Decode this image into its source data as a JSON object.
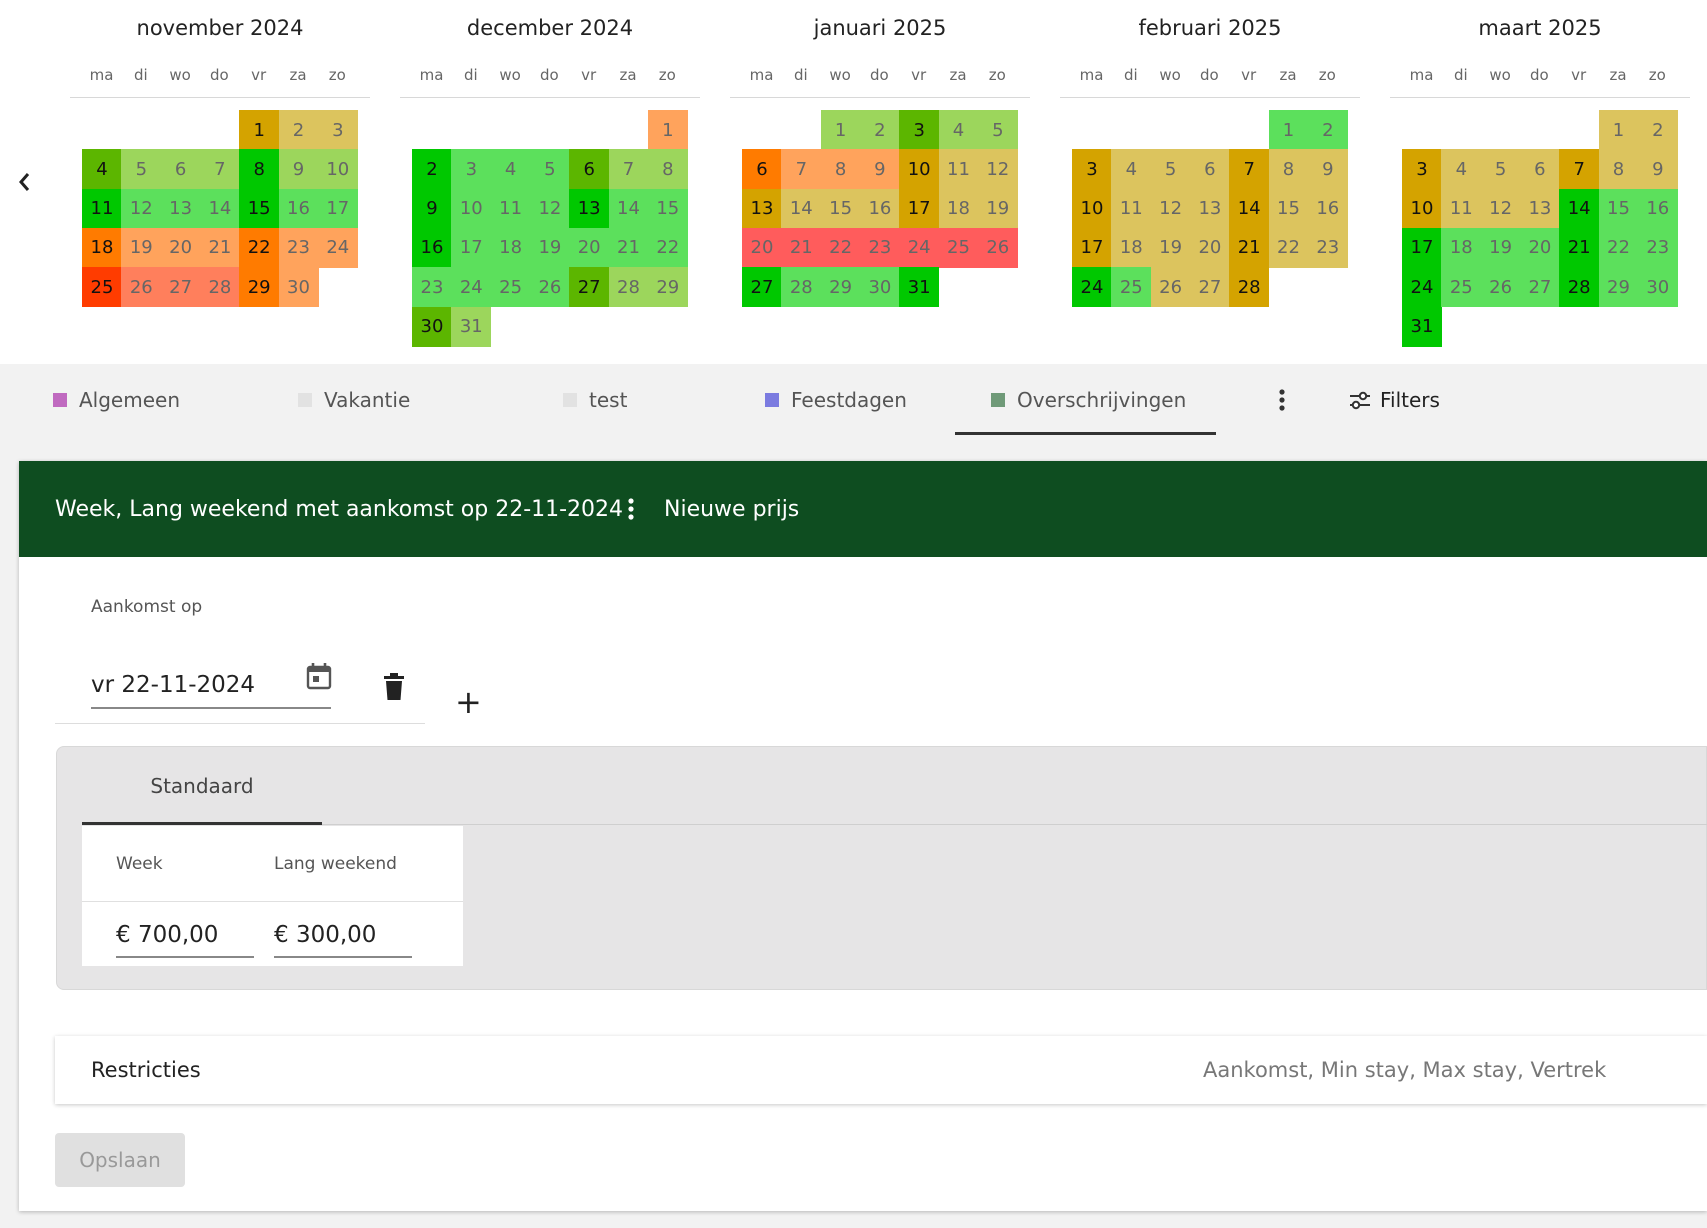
{
  "calendar": {
    "weekdays": [
      "ma",
      "di",
      "wo",
      "do",
      "vr",
      "za",
      "zo"
    ],
    "months": [
      {
        "title": "november 2024",
        "start_offset": 4,
        "days": [
          {
            "d": "1",
            "c": "#d4a300",
            "s": true
          },
          {
            "d": "2",
            "c": "#dcc45e"
          },
          {
            "d": "3",
            "c": "#dcc45e"
          },
          {
            "d": "4",
            "c": "#5cb600",
            "s": true
          },
          {
            "d": "5",
            "c": "#9cd65c"
          },
          {
            "d": "6",
            "c": "#9cd65c"
          },
          {
            "d": "7",
            "c": "#9cd65c"
          },
          {
            "d": "8",
            "c": "#00c800",
            "s": true
          },
          {
            "d": "9",
            "c": "#9cd65c"
          },
          {
            "d": "10",
            "c": "#9cd65c"
          },
          {
            "d": "11",
            "c": "#00c800",
            "s": true
          },
          {
            "d": "12",
            "c": "#5ce05c"
          },
          {
            "d": "13",
            "c": "#5ce05c"
          },
          {
            "d": "14",
            "c": "#5ce05c"
          },
          {
            "d": "15",
            "c": "#00c800",
            "s": true
          },
          {
            "d": "16",
            "c": "#5ce05c"
          },
          {
            "d": "17",
            "c": "#5ce05c"
          },
          {
            "d": "18",
            "c": "#ff7b00",
            "s": true
          },
          {
            "d": "19",
            "c": "#ffa35c"
          },
          {
            "d": "20",
            "c": "#ffa35c"
          },
          {
            "d": "21",
            "c": "#ffa35c"
          },
          {
            "d": "22",
            "c": "#ff7b00",
            "s": true
          },
          {
            "d": "23",
            "c": "#ffa35c"
          },
          {
            "d": "24",
            "c": "#ffa35c"
          },
          {
            "d": "25",
            "c": "#ff3c00",
            "s": true
          },
          {
            "d": "26",
            "c": "#ff7f5c"
          },
          {
            "d": "27",
            "c": "#ff7f5c"
          },
          {
            "d": "28",
            "c": "#ff7f5c"
          },
          {
            "d": "29",
            "c": "#ff7b00",
            "s": true
          },
          {
            "d": "30",
            "c": "#ffa35c"
          }
        ]
      },
      {
        "title": "december 2024",
        "start_offset": 6,
        "days": [
          {
            "d": "1",
            "c": "#ffa35c"
          },
          {
            "d": "2",
            "c": "#00c800",
            "s": true
          },
          {
            "d": "3",
            "c": "#5ce05c"
          },
          {
            "d": "4",
            "c": "#5ce05c"
          },
          {
            "d": "5",
            "c": "#5ce05c"
          },
          {
            "d": "6",
            "c": "#5cb600",
            "s": true
          },
          {
            "d": "7",
            "c": "#9cd65c"
          },
          {
            "d": "8",
            "c": "#9cd65c"
          },
          {
            "d": "9",
            "c": "#00c800",
            "s": true
          },
          {
            "d": "10",
            "c": "#5ce05c"
          },
          {
            "d": "11",
            "c": "#5ce05c"
          },
          {
            "d": "12",
            "c": "#5ce05c"
          },
          {
            "d": "13",
            "c": "#00c800",
            "s": true
          },
          {
            "d": "14",
            "c": "#5ce05c"
          },
          {
            "d": "15",
            "c": "#5ce05c"
          },
          {
            "d": "16",
            "c": "#00c800",
            "s": true
          },
          {
            "d": "17",
            "c": "#5ce05c"
          },
          {
            "d": "18",
            "c": "#5ce05c"
          },
          {
            "d": "19",
            "c": "#5ce05c"
          },
          {
            "d": "20",
            "c": "#5ce05c"
          },
          {
            "d": "21",
            "c": "#5ce05c"
          },
          {
            "d": "22",
            "c": "#5ce05c"
          },
          {
            "d": "23",
            "c": "#5ce05c"
          },
          {
            "d": "24",
            "c": "#5ce05c"
          },
          {
            "d": "25",
            "c": "#5ce05c"
          },
          {
            "d": "26",
            "c": "#5ce05c"
          },
          {
            "d": "27",
            "c": "#5cb600",
            "s": true
          },
          {
            "d": "28",
            "c": "#9cd65c"
          },
          {
            "d": "29",
            "c": "#9cd65c"
          },
          {
            "d": "30",
            "c": "#5cb600",
            "s": true
          },
          {
            "d": "31",
            "c": "#9cd65c"
          }
        ]
      },
      {
        "title": "januari 2025",
        "start_offset": 2,
        "days": [
          {
            "d": "1",
            "c": "#9cd65c"
          },
          {
            "d": "2",
            "c": "#9cd65c"
          },
          {
            "d": "3",
            "c": "#5cb600",
            "s": true
          },
          {
            "d": "4",
            "c": "#9cd65c"
          },
          {
            "d": "5",
            "c": "#9cd65c"
          },
          {
            "d": "6",
            "c": "#ff7b00",
            "s": true
          },
          {
            "d": "7",
            "c": "#ffa35c"
          },
          {
            "d": "8",
            "c": "#ffa35c"
          },
          {
            "d": "9",
            "c": "#ffa35c"
          },
          {
            "d": "10",
            "c": "#d4a300",
            "s": true
          },
          {
            "d": "11",
            "c": "#dcc45e"
          },
          {
            "d": "12",
            "c": "#dcc45e"
          },
          {
            "d": "13",
            "c": "#d4a300",
            "s": true
          },
          {
            "d": "14",
            "c": "#dcc45e"
          },
          {
            "d": "15",
            "c": "#dcc45e"
          },
          {
            "d": "16",
            "c": "#dcc45e"
          },
          {
            "d": "17",
            "c": "#d4a300",
            "s": true
          },
          {
            "d": "18",
            "c": "#dcc45e"
          },
          {
            "d": "19",
            "c": "#dcc45e"
          },
          {
            "d": "20",
            "c": "#ff5c5c"
          },
          {
            "d": "21",
            "c": "#ff5c5c"
          },
          {
            "d": "22",
            "c": "#ff5c5c"
          },
          {
            "d": "23",
            "c": "#ff5c5c"
          },
          {
            "d": "24",
            "c": "#ff5c5c"
          },
          {
            "d": "25",
            "c": "#ff5c5c"
          },
          {
            "d": "26",
            "c": "#ff5c5c"
          },
          {
            "d": "27",
            "c": "#00c800",
            "s": true
          },
          {
            "d": "28",
            "c": "#5ce05c"
          },
          {
            "d": "29",
            "c": "#5ce05c"
          },
          {
            "d": "30",
            "c": "#5ce05c"
          },
          {
            "d": "31",
            "c": "#00c800",
            "s": true
          }
        ]
      },
      {
        "title": "februari 2025",
        "start_offset": 5,
        "days": [
          {
            "d": "1",
            "c": "#5ce05c"
          },
          {
            "d": "2",
            "c": "#5ce05c"
          },
          {
            "d": "3",
            "c": "#d4a300",
            "s": true
          },
          {
            "d": "4",
            "c": "#dcc45e"
          },
          {
            "d": "5",
            "c": "#dcc45e"
          },
          {
            "d": "6",
            "c": "#dcc45e"
          },
          {
            "d": "7",
            "c": "#d4a300",
            "s": true
          },
          {
            "d": "8",
            "c": "#dcc45e"
          },
          {
            "d": "9",
            "c": "#dcc45e"
          },
          {
            "d": "10",
            "c": "#d4a300",
            "s": true
          },
          {
            "d": "11",
            "c": "#dcc45e"
          },
          {
            "d": "12",
            "c": "#dcc45e"
          },
          {
            "d": "13",
            "c": "#dcc45e"
          },
          {
            "d": "14",
            "c": "#d4a300",
            "s": true
          },
          {
            "d": "15",
            "c": "#dcc45e"
          },
          {
            "d": "16",
            "c": "#dcc45e"
          },
          {
            "d": "17",
            "c": "#d4a300",
            "s": true
          },
          {
            "d": "18",
            "c": "#dcc45e"
          },
          {
            "d": "19",
            "c": "#dcc45e"
          },
          {
            "d": "20",
            "c": "#dcc45e"
          },
          {
            "d": "21",
            "c": "#d4a300",
            "s": true
          },
          {
            "d": "22",
            "c": "#dcc45e"
          },
          {
            "d": "23",
            "c": "#dcc45e"
          },
          {
            "d": "24",
            "c": "#00c800",
            "s": true
          },
          {
            "d": "25",
            "c": "#5ce05c"
          },
          {
            "d": "26",
            "c": "#dcc45e"
          },
          {
            "d": "27",
            "c": "#dcc45e"
          },
          {
            "d": "28",
            "c": "#d4a300",
            "s": true
          }
        ]
      },
      {
        "title": "maart 2025",
        "start_offset": 5,
        "days": [
          {
            "d": "1",
            "c": "#dcc45e"
          },
          {
            "d": "2",
            "c": "#dcc45e"
          },
          {
            "d": "3",
            "c": "#d4a300",
            "s": true
          },
          {
            "d": "4",
            "c": "#dcc45e"
          },
          {
            "d": "5",
            "c": "#dcc45e"
          },
          {
            "d": "6",
            "c": "#dcc45e"
          },
          {
            "d": "7",
            "c": "#d4a300",
            "s": true
          },
          {
            "d": "8",
            "c": "#dcc45e"
          },
          {
            "d": "9",
            "c": "#dcc45e"
          },
          {
            "d": "10",
            "c": "#d4a300",
            "s": true
          },
          {
            "d": "11",
            "c": "#dcc45e"
          },
          {
            "d": "12",
            "c": "#dcc45e"
          },
          {
            "d": "13",
            "c": "#dcc45e"
          },
          {
            "d": "14",
            "c": "#00c800",
            "s": true
          },
          {
            "d": "15",
            "c": "#5ce05c"
          },
          {
            "d": "16",
            "c": "#5ce05c"
          },
          {
            "d": "17",
            "c": "#00c800",
            "s": true
          },
          {
            "d": "18",
            "c": "#5ce05c"
          },
          {
            "d": "19",
            "c": "#5ce05c"
          },
          {
            "d": "20",
            "c": "#5ce05c"
          },
          {
            "d": "21",
            "c": "#00c800",
            "s": true
          },
          {
            "d": "22",
            "c": "#5ce05c"
          },
          {
            "d": "23",
            "c": "#5ce05c"
          },
          {
            "d": "24",
            "c": "#00c800",
            "s": true
          },
          {
            "d": "25",
            "c": "#5ce05c"
          },
          {
            "d": "26",
            "c": "#5ce05c"
          },
          {
            "d": "27",
            "c": "#5ce05c"
          },
          {
            "d": "28",
            "c": "#00c800",
            "s": true
          },
          {
            "d": "29",
            "c": "#5ce05c"
          },
          {
            "d": "30",
            "c": "#5ce05c"
          },
          {
            "d": "31",
            "c": "#00c800",
            "s": true
          }
        ]
      }
    ]
  },
  "tabs": [
    {
      "label": "Algemeen",
      "color": "#c06ac0"
    },
    {
      "label": "Vakantie",
      "color": "#e2e2e2"
    },
    {
      "label": "test",
      "color": "#e2e2e2"
    },
    {
      "label": "Feestdagen",
      "color": "#7b7be0"
    },
    {
      "label": "Overschrijvingen",
      "color": "#6f9a78"
    }
  ],
  "filters_label": "Filters",
  "header": {
    "title": "Week, Lang weekend met aankomst op 22-11-2024",
    "new_price": "Nieuwe prijs",
    "bg_color": "#0e4d20"
  },
  "arrival": {
    "label": "Aankomst op",
    "value": "vr 22-11-2024"
  },
  "standaard": {
    "tab_label": "Standaard",
    "columns": [
      "Week",
      "Lang weekend"
    ],
    "values": [
      "€ 700,00",
      "€ 300,00"
    ]
  },
  "restricties": {
    "label": "Restricties",
    "summary": "Aankomst, Min stay, Max stay, Vertrek"
  },
  "save_label": "Opslaan"
}
